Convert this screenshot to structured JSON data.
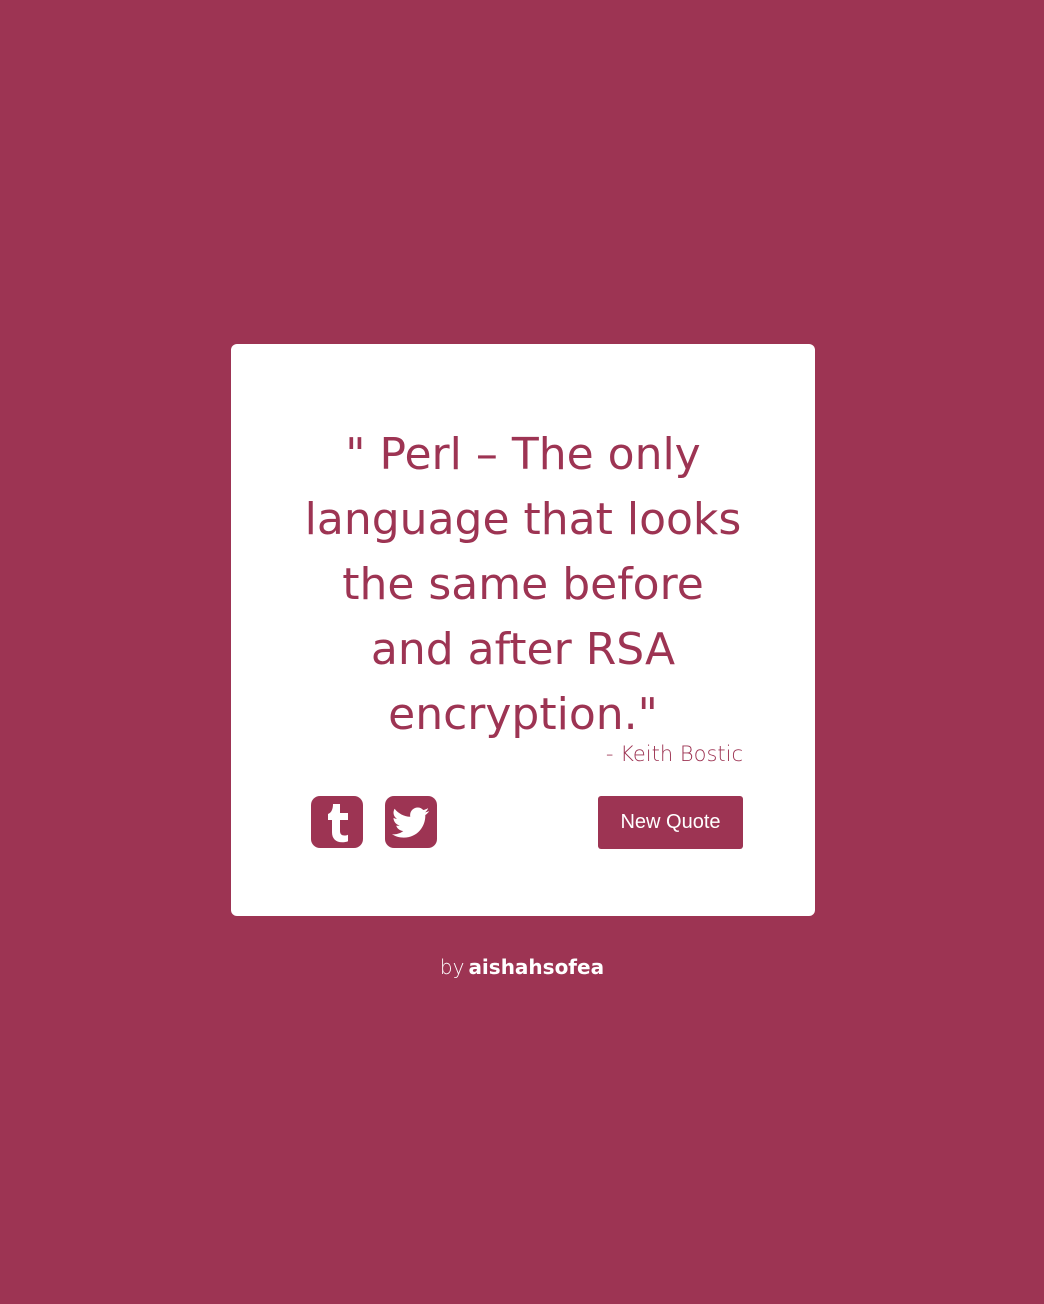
{
  "colors": {
    "background": "#9d3453",
    "card": "#ffffff",
    "accent": "#9d3453"
  },
  "quote": {
    "text": "\" Perl – The only language that looks the same before and after RSA encryption.\"",
    "author": "- Keith Bostic"
  },
  "actions": {
    "tumblr_icon": "tumblr-icon",
    "twitter_icon": "twitter-icon",
    "new_quote_label": "New Quote"
  },
  "footer": {
    "by": "by",
    "handle": "aishahsofea"
  }
}
